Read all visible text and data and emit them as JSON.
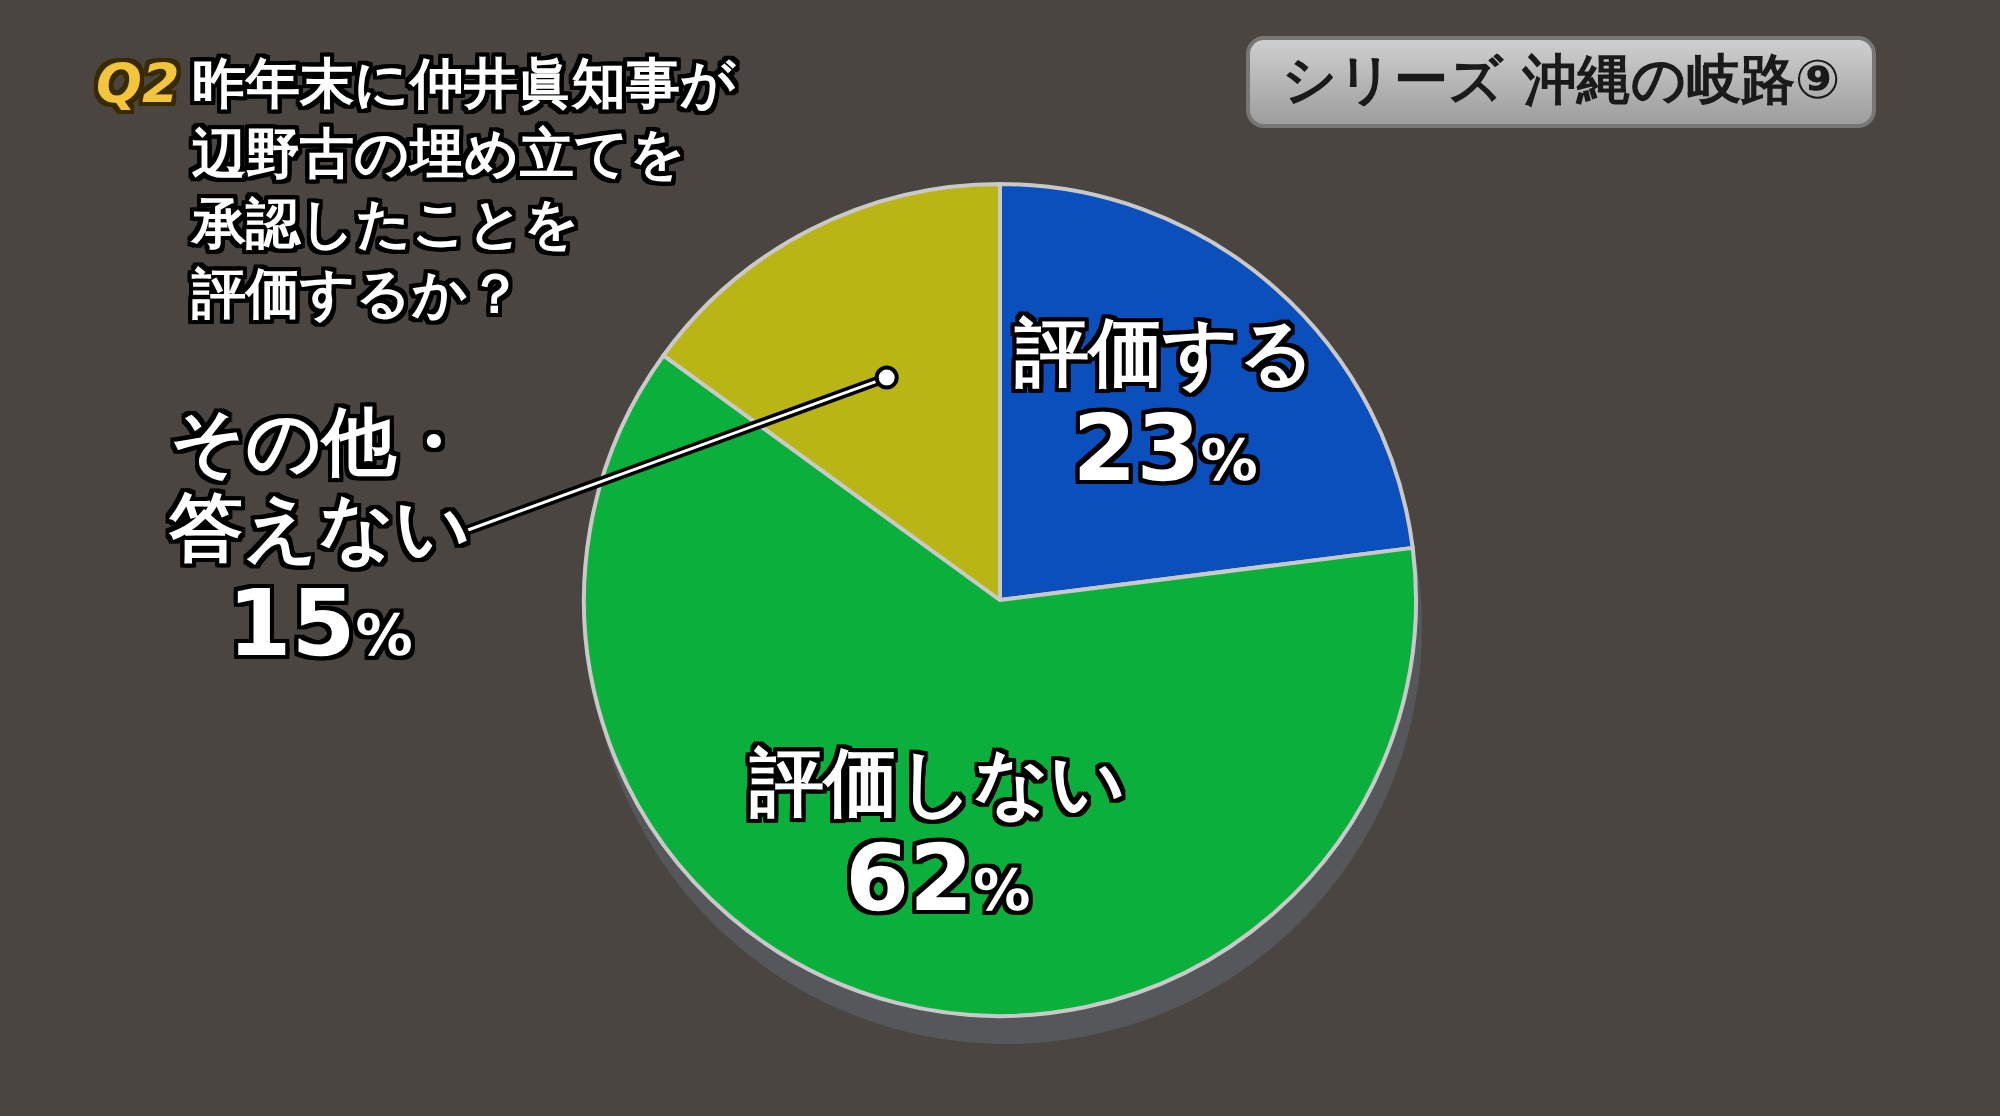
{
  "chart_data": {
    "type": "pie",
    "title": "昨年末に仲井眞知事が辺野古の埋め立てを承認したことを評価するか？",
    "subtitle": "シリーズ 沖縄の岐路⑨",
    "annotations": [
      "Q2"
    ],
    "categories": [
      "評価する",
      "評価しない",
      "その他・答えない"
    ],
    "values": [
      23,
      62,
      15
    ],
    "colors": [
      "#0b4fbd",
      "#0aaf3c",
      "#b8b515"
    ],
    "value_labels": [
      "23%",
      "62%",
      "15%"
    ]
  }
}
